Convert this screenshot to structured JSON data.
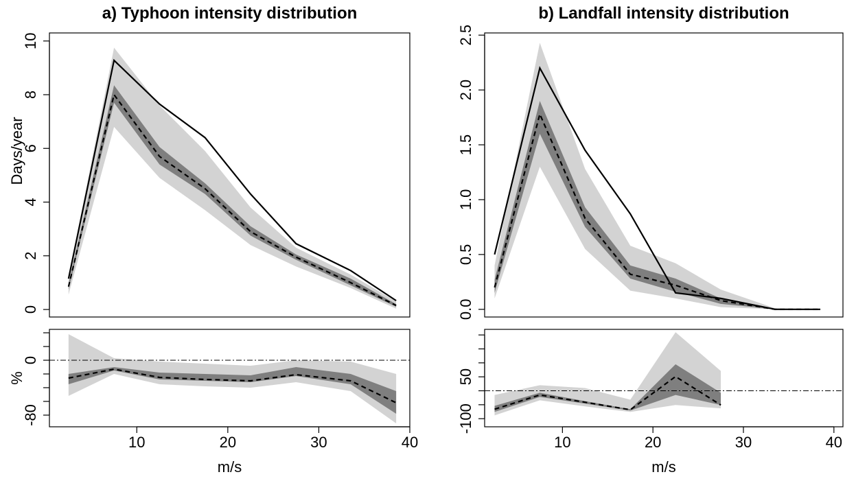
{
  "chart_data": [
    {
      "type": "line",
      "title": "a) Typhoon intensity distribution",
      "ylabel": "Days/year",
      "x": [
        2.5,
        7.5,
        12.5,
        17.5,
        22.5,
        27.5,
        33.5,
        38.5
      ],
      "xlim": [
        0.4,
        40
      ],
      "ylim": [
        -0.28,
        10.3
      ],
      "yticks": [
        0,
        2,
        4,
        6,
        8,
        10
      ],
      "bands": [
        {
          "color": "#d3d3d3",
          "lower": [
            0.55,
            6.8,
            4.9,
            3.7,
            2.4,
            1.6,
            0.8,
            0.03
          ],
          "upper": [
            1.2,
            9.75,
            7.6,
            5.9,
            3.8,
            2.3,
            1.3,
            0.3
          ]
        },
        {
          "color": "#7f7f7f",
          "lower": [
            0.75,
            7.7,
            5.4,
            4.3,
            2.75,
            1.85,
            0.9,
            0.1
          ],
          "upper": [
            0.95,
            8.35,
            6.05,
            4.7,
            3.1,
            2.05,
            1.15,
            0.2
          ]
        }
      ],
      "lines": [
        {
          "color": "#000000",
          "dash": false,
          "values": [
            1.15,
            9.28,
            7.65,
            6.4,
            4.3,
            2.45,
            1.45,
            0.33
          ]
        },
        {
          "color": "#000000",
          "dash": true,
          "values": [
            0.85,
            8.0,
            5.7,
            4.5,
            2.9,
            1.95,
            1.0,
            0.15
          ]
        }
      ]
    },
    {
      "type": "line",
      "ylabel": "%",
      "xlabel": "m/s",
      "x": [
        2.5,
        7.5,
        12.5,
        17.5,
        22.5,
        27.5,
        33.5,
        38.5
      ],
      "xlim": [
        0.4,
        40
      ],
      "xticks": [
        10,
        20,
        30,
        40
      ],
      "ylim": [
        -97,
        45
      ],
      "yticks": [
        -80,
        0
      ],
      "yminorticks": [
        -60,
        -40,
        -20,
        20,
        40
      ],
      "reference_line": 0,
      "bands": [
        {
          "color": "#d3d3d3",
          "lower": [
            -52,
            -20,
            -35,
            -38,
            -40,
            -32,
            -45,
            -92
          ],
          "upper": [
            38,
            3,
            -2,
            -5,
            -8,
            0,
            -2,
            -20
          ]
        },
        {
          "color": "#7f7f7f",
          "lower": [
            -35,
            -15,
            -28,
            -30,
            -32,
            -23,
            -35,
            -78
          ],
          "upper": [
            -20,
            -10,
            -18,
            -20,
            -22,
            -10,
            -20,
            -45
          ]
        }
      ],
      "lines": [
        {
          "color": "#000000",
          "dash": true,
          "values": [
            -26,
            -13,
            -25,
            -28,
            -30,
            -21,
            -30,
            -62
          ]
        }
      ]
    },
    {
      "type": "line",
      "title": "b) Landfall intensity distribution",
      "x": [
        2.5,
        7.5,
        12.5,
        17.5,
        22.5,
        27.5,
        33.5,
        38.5
      ],
      "xlim": [
        1.4,
        41
      ],
      "ylim": [
        -0.07,
        2.52
      ],
      "yticks": [
        {
          "value": 0,
          "label": "0.0"
        },
        0.5,
        {
          "value": 1,
          "label": "1.0"
        },
        1.5,
        {
          "value": 2,
          "label": "2.0"
        },
        2.5
      ],
      "bands": [
        {
          "color": "#d3d3d3",
          "lower": [
            0.1,
            1.3,
            0.55,
            0.17,
            0.1,
            0.02,
            0,
            0
          ],
          "upper": [
            0.4,
            2.43,
            1.28,
            0.58,
            0.42,
            0.18,
            0.01,
            0
          ]
        },
        {
          "color": "#7f7f7f",
          "lower": [
            0.15,
            1.6,
            0.75,
            0.28,
            0.16,
            0.05,
            0,
            0
          ],
          "upper": [
            0.27,
            1.9,
            0.93,
            0.4,
            0.28,
            0.1,
            0,
            0
          ]
        }
      ],
      "lines": [
        {
          "color": "#000000",
          "dash": false,
          "values": [
            0.5,
            2.2,
            1.45,
            0.87,
            0.15,
            0.1,
            0,
            0
          ]
        },
        {
          "color": "#000000",
          "dash": true,
          "values": [
            0.2,
            1.78,
            0.83,
            0.32,
            0.22,
            0.08,
            0,
            0
          ]
        }
      ]
    },
    {
      "type": "line",
      "xlabel": "m/s",
      "x": [
        2.5,
        7.5,
        12.5,
        17.5,
        22.5,
        27.5
      ],
      "xlim": [
        1.4,
        41
      ],
      "xticks": [
        10,
        20,
        30,
        40
      ],
      "ylim": [
        -129,
        220
      ],
      "yticks": [
        -100,
        50
      ],
      "yminorticks": [
        -50,
        0,
        100,
        150,
        200
      ],
      "reference_line": 0,
      "bands": [
        {
          "color": "#d3d3d3",
          "lower": [
            -88,
            -34,
            -56,
            -76,
            -51,
            -63
          ],
          "upper": [
            -15,
            20,
            10,
            -32,
            210,
            71
          ]
        },
        {
          "color": "#7f7f7f",
          "lower": [
            -76,
            -22,
            -46,
            -71,
            -15,
            -51
          ],
          "upper": [
            -54,
            -7,
            -37,
            -66,
            95,
            -7
          ]
        }
      ],
      "lines": [
        {
          "color": "#000000",
          "dash": true,
          "values": [
            -66,
            -15,
            -41,
            -68,
            51,
            -51
          ]
        }
      ]
    }
  ]
}
